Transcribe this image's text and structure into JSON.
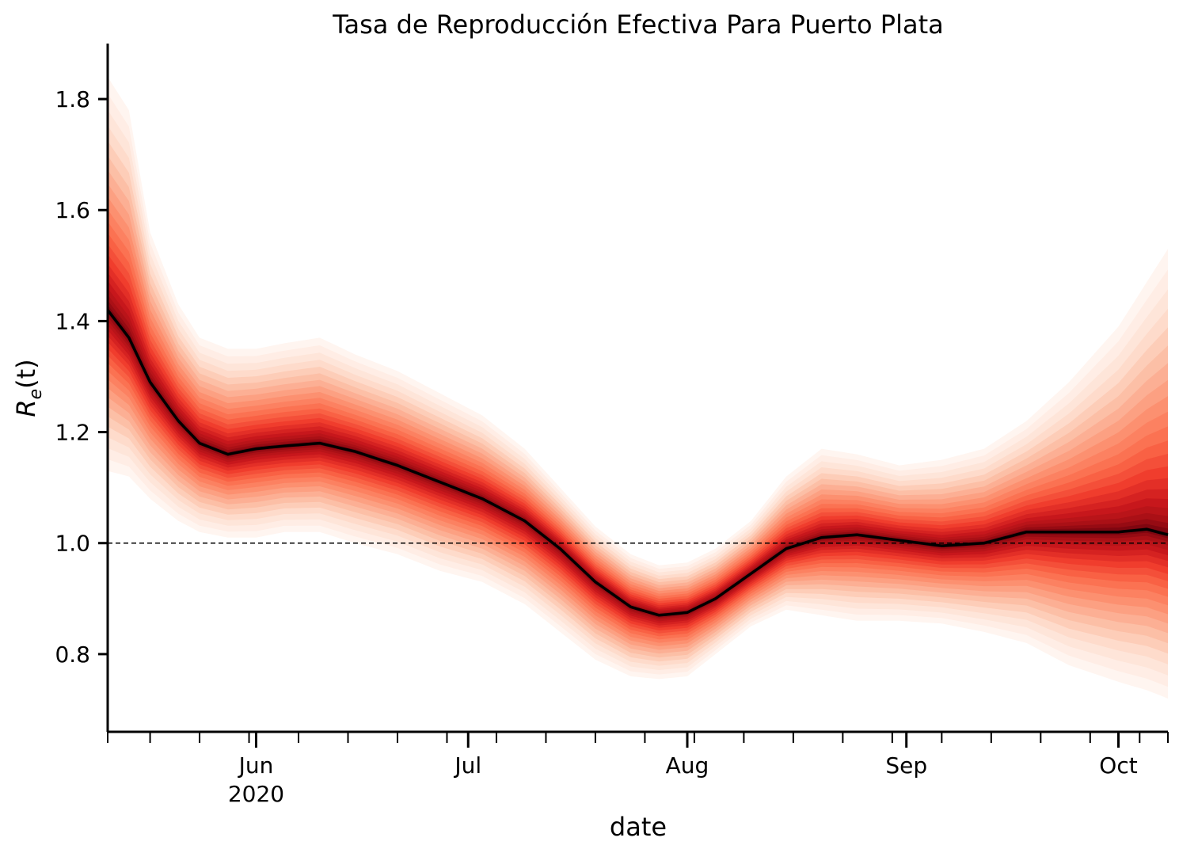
{
  "chart_data": {
    "type": "area",
    "title": "Tasa de Reproducción Efectiva Para Puerto Plata",
    "xlabel": "date",
    "ylabel": "R",
    "ylabel_subscript": "e",
    "ylabel_suffix": "(t)",
    "x_range": [
      "2020-05-11",
      "2020-10-08"
    ],
    "ylim": [
      0.66,
      1.9
    ],
    "yticks": [
      0.8,
      1.0,
      1.2,
      1.4,
      1.6,
      1.8
    ],
    "ytick_labels": [
      "0.8",
      "1.0",
      "1.2",
      "1.4",
      "1.6",
      "1.8"
    ],
    "xticks_major": [
      {
        "date": "2020-06-01",
        "label": "Jun",
        "sublabel": "2020"
      },
      {
        "date": "2020-07-01",
        "label": "Jul",
        "sublabel": ""
      },
      {
        "date": "2020-08-01",
        "label": "Aug",
        "sublabel": ""
      },
      {
        "date": "2020-09-01",
        "label": "Sep",
        "sublabel": ""
      },
      {
        "date": "2020-10-01",
        "label": "Oct",
        "sublabel": ""
      }
    ],
    "reference_line": {
      "y": 1.0,
      "style": "dashed"
    },
    "grid": false,
    "series": [
      {
        "dates": [
          "2020-05-11",
          "2020-05-14",
          "2020-05-17",
          "2020-05-21",
          "2020-05-24",
          "2020-05-28",
          "2020-06-01",
          "2020-06-05",
          "2020-06-10",
          "2020-06-15",
          "2020-06-21",
          "2020-06-27",
          "2020-07-03",
          "2020-07-09",
          "2020-07-14",
          "2020-07-19",
          "2020-07-24",
          "2020-07-28",
          "2020-08-01",
          "2020-08-05",
          "2020-08-10",
          "2020-08-15",
          "2020-08-20",
          "2020-08-25",
          "2020-08-31",
          "2020-09-06",
          "2020-09-12",
          "2020-09-18",
          "2020-09-24",
          "2020-10-01",
          "2020-10-05",
          "2020-10-08"
        ],
        "median": [
          1.42,
          1.37,
          1.29,
          1.22,
          1.18,
          1.16,
          1.17,
          1.175,
          1.18,
          1.165,
          1.14,
          1.11,
          1.08,
          1.04,
          0.99,
          0.93,
          0.885,
          0.87,
          0.875,
          0.9,
          0.945,
          0.99,
          1.01,
          1.015,
          1.005,
          0.995,
          1.0,
          1.02,
          1.02,
          1.02,
          1.025,
          1.015
        ],
        "lower": [
          1.13,
          1.12,
          1.08,
          1.04,
          1.02,
          1.01,
          1.01,
          1.02,
          1.02,
          1.0,
          0.98,
          0.95,
          0.93,
          0.89,
          0.84,
          0.79,
          0.76,
          0.755,
          0.76,
          0.8,
          0.85,
          0.88,
          0.87,
          0.86,
          0.86,
          0.855,
          0.84,
          0.82,
          0.78,
          0.75,
          0.735,
          0.72
        ],
        "upper": [
          1.84,
          1.78,
          1.56,
          1.43,
          1.37,
          1.35,
          1.35,
          1.36,
          1.37,
          1.34,
          1.31,
          1.27,
          1.23,
          1.17,
          1.1,
          1.03,
          0.98,
          0.96,
          0.965,
          0.99,
          1.04,
          1.12,
          1.17,
          1.16,
          1.14,
          1.15,
          1.17,
          1.22,
          1.29,
          1.39,
          1.47,
          1.53
        ]
      }
    ],
    "colors": {
      "median_line": "#000000",
      "band_light": "#fff5f0",
      "band_mid": "#fb6a4a",
      "band_dark": "#67000d"
    }
  }
}
